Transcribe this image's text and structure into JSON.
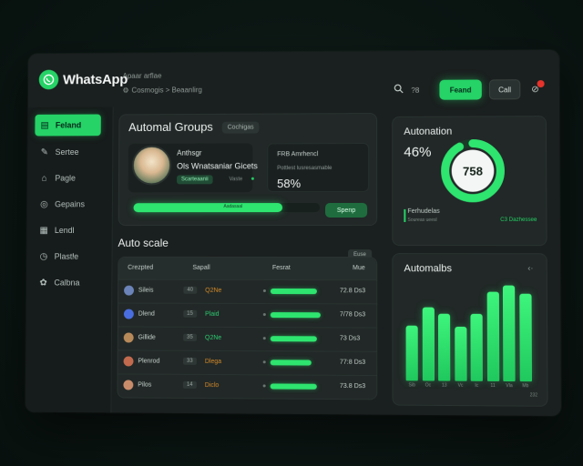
{
  "app": {
    "name": "WhatsApp"
  },
  "header": {
    "breadcrumb_top": "Apaar arflae",
    "breadcrumb_path": "Cosmogis > Beaanlirg",
    "zoom_text": "?8",
    "primary_button": "Feand",
    "secondary_button": "Call"
  },
  "sidebar": {
    "items": [
      {
        "label": "Feland",
        "icon": "chat-icon",
        "active": true
      },
      {
        "label": "Sertee",
        "icon": "edit-icon",
        "active": false
      },
      {
        "label": "Pagle",
        "icon": "bag-icon",
        "active": false
      },
      {
        "label": "Gepains",
        "icon": "gamepad-icon",
        "active": false
      },
      {
        "label": "Lendl",
        "icon": "chart-icon",
        "active": false
      },
      {
        "label": "Plastle",
        "icon": "clock-icon",
        "active": false
      },
      {
        "label": "Calbna",
        "icon": "puzzle-icon",
        "active": false
      }
    ]
  },
  "groups": {
    "title": "Automal Groups",
    "tag": "Cochigas",
    "card_title": "Anthsgr",
    "card_subtitle": "Ols Wnatsaniar Gicets",
    "card_chip": "Scarteaanii",
    "card_meta": "Vaste",
    "stat_line1": "FRB Amrhencl",
    "stat_line2": "Pottlest lusresasmable",
    "stat_value": "58%",
    "progress_label": "Aadasaal",
    "progress": 0.8,
    "button": "Spenp"
  },
  "automation": {
    "title": "Autonation",
    "percent": "46%",
    "donut_value": "758",
    "donut_fraction": 0.46,
    "foot_label": "Ferhudelas",
    "foot_sub": "Soureas ueesl",
    "foot_link": "C3 Dazhessee"
  },
  "table": {
    "title": "Auto scale",
    "button": "Euse",
    "headers": [
      "Crezpted",
      "Sapall",
      "Fesrat",
      "Mue"
    ],
    "rows": [
      {
        "name": "Sileis",
        "code": "40",
        "tag": "Q2Ne",
        "tag_color": "#d68a2a",
        "progress": 0.88,
        "value": "72.8 Ds3",
        "avatar": "#6b83b8"
      },
      {
        "name": "Dlend",
        "code": "15",
        "tag": "Plaid",
        "tag_color": "#2ecc71",
        "progress": 0.95,
        "value": "7/78 Ds3",
        "avatar": "#4a6ee0"
      },
      {
        "name": "Gillide",
        "code": "35",
        "tag": "Q2Ne",
        "tag_color": "#2ecc71",
        "progress": 0.88,
        "value": "73 Ds3",
        "avatar": "#b88a5a"
      },
      {
        "name": "Plenrod",
        "code": "33",
        "tag": "Dlega",
        "tag_color": "#d68a2a",
        "progress": 0.78,
        "value": "77:8 Ds3",
        "avatar": "#c26a4e"
      },
      {
        "name": "Pilos",
        "code": "14",
        "tag": "Diclo",
        "tag_color": "#d68a2a",
        "progress": 0.88,
        "value": "73.8 Ds3",
        "avatar": "#c98c6b"
      }
    ]
  },
  "bars": {
    "title": "Automalbs",
    "more": "‹·",
    "values": [
      0.56,
      0.74,
      0.68,
      0.55,
      0.68,
      0.9,
      0.96,
      0.88
    ],
    "labels": [
      "Sib",
      "Oc",
      "13",
      "Vc",
      "Ic",
      "11",
      "Vla",
      "Mb"
    ],
    "foot": "232"
  },
  "colors": {
    "accent": "#25d366",
    "panel": "#212827",
    "badge": "#e5332b"
  }
}
